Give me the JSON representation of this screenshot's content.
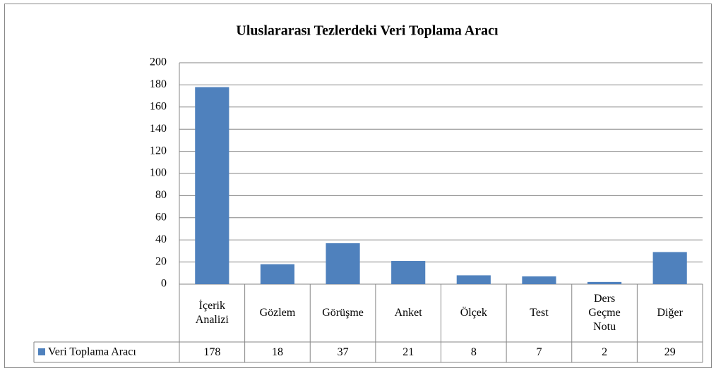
{
  "chart_data": {
    "type": "bar",
    "title": "Uluslararası Tezlerdeki Veri Toplama Aracı",
    "categories": [
      "İçerik Analizi",
      "Gözlem",
      "Görüşme",
      "Anket",
      "Ölçek",
      "Test",
      "Ders Geçme Notu",
      "Diğer"
    ],
    "series": [
      {
        "name": "Veri Toplama Aracı",
        "color": "#4f81bd",
        "values": [
          178,
          18,
          37,
          21,
          8,
          7,
          2,
          29
        ]
      }
    ],
    "ylim": [
      0,
      200
    ],
    "yticks": [
      0,
      20,
      40,
      60,
      80,
      100,
      120,
      140,
      160,
      180,
      200
    ],
    "grid": true
  }
}
